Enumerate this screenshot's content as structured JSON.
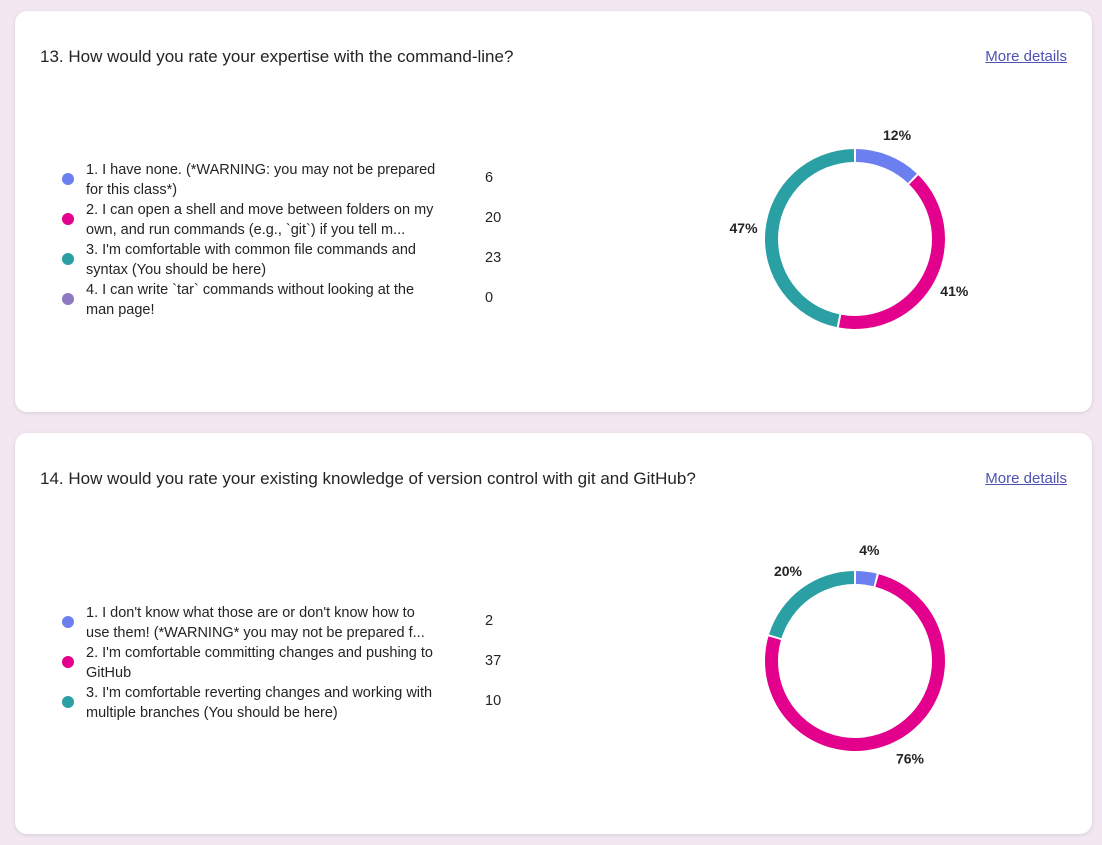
{
  "questions": [
    {
      "title": "13. How would you rate your expertise with the command-line?",
      "more_details": "More details",
      "options": [
        {
          "label": "1. I have none. (*WARNING: you may not be prepared for this class*)",
          "count": "6",
          "color": "#6b7ff0"
        },
        {
          "label": "2. I can open a shell and move between folders on my own, and run commands (e.g., `git`) if you tell m...",
          "count": "20",
          "color": "#e3008c"
        },
        {
          "label": "3. I'm comfortable with common file commands and syntax (You should be here)",
          "count": "23",
          "color": "#2aa0a4"
        },
        {
          "label": "4. I can write `tar` commands without looking at the man page!",
          "count": "0",
          "color": "#8e79c1"
        }
      ],
      "chart_data": {
        "type": "pie",
        "donut": true,
        "categories": [
          "1",
          "2",
          "3",
          "4"
        ],
        "values": [
          6,
          20,
          23,
          0
        ],
        "labels": [
          "12%",
          "41%",
          "47%",
          ""
        ],
        "colors": [
          "#6b7ff0",
          "#e3008c",
          "#2aa0a4",
          "#8e79c1"
        ]
      }
    },
    {
      "title": "14. How would you rate your existing knowledge of version control with git and GitHub?",
      "more_details": "More details",
      "options": [
        {
          "label": "1. I don't know what those are or don't know how to use them! (*WARNING* you may not be prepared f...",
          "count": "2",
          "color": "#6b7ff0"
        },
        {
          "label": "2. I'm comfortable committing changes and pushing to GitHub",
          "count": "37",
          "color": "#e3008c"
        },
        {
          "label": "3. I'm comfortable reverting changes and working with multiple branches (You should be here)",
          "count": "10",
          "color": "#2aa0a4"
        }
      ],
      "chart_data": {
        "type": "pie",
        "donut": true,
        "categories": [
          "1",
          "2",
          "3"
        ],
        "values": [
          2,
          37,
          10
        ],
        "labels": [
          "4%",
          "76%",
          "20%"
        ],
        "colors": [
          "#6b7ff0",
          "#e3008c",
          "#2aa0a4"
        ]
      }
    }
  ]
}
